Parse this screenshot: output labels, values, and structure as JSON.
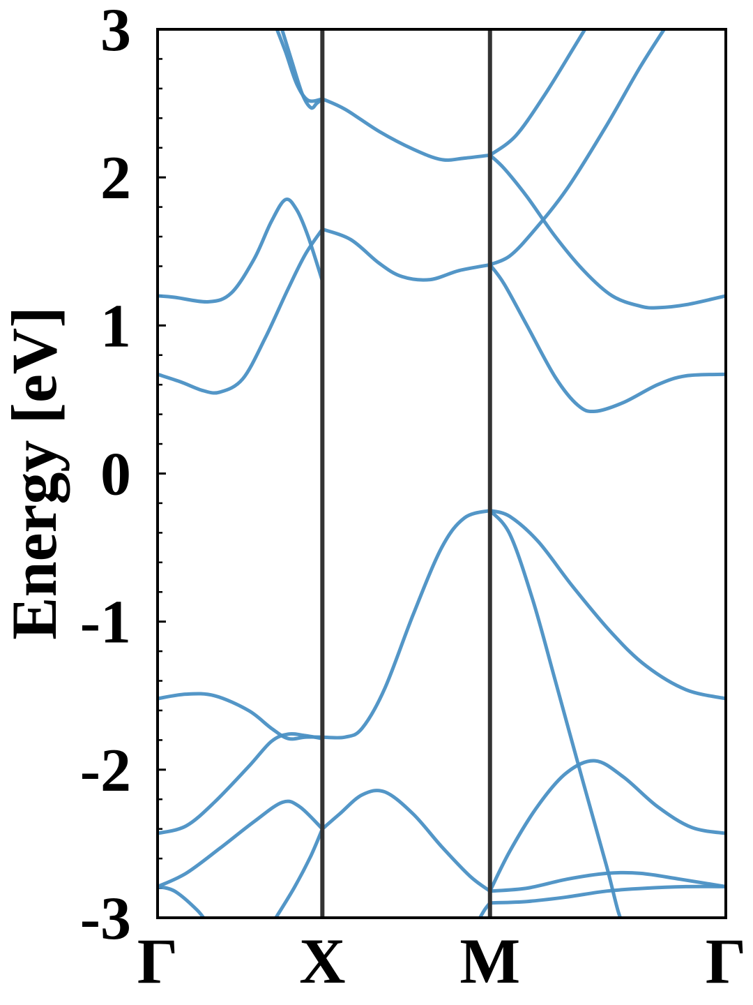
{
  "chart_data": {
    "type": "line",
    "title": "",
    "xlabel": "",
    "ylabel": "Energy [eV]",
    "ylim": [
      -3,
      3
    ],
    "x_points": [
      {
        "label": "Γ",
        "k": 0
      },
      {
        "label": "X",
        "k": 0.29
      },
      {
        "label": "M",
        "k": 0.585
      },
      {
        "label": "Γ",
        "k": 1.0
      }
    ],
    "yticks": [
      -3,
      -2,
      -1,
      0,
      1,
      2,
      3
    ],
    "ytick_labels": [
      "-3",
      "-2",
      "-1",
      "0",
      "1",
      "2",
      "3"
    ],
    "y_minor_step": 0.2,
    "grid": false,
    "colors": {
      "band": "#4a90c4",
      "symmetry_line": "#333333",
      "axes": "#000000"
    },
    "series": [
      {
        "values": [
          [
            0,
            1.2
          ],
          [
            0.03,
            1.19
          ],
          [
            0.09,
            1.16
          ],
          [
            0.13,
            1.22
          ],
          [
            0.17,
            1.45
          ],
          [
            0.2,
            1.7
          ],
          [
            0.225,
            1.85
          ],
          [
            0.245,
            1.78
          ],
          [
            0.265,
            1.6
          ],
          [
            0.29,
            1.3
          ]
        ]
      },
      {
        "values": [
          [
            0,
            0.67
          ],
          [
            0.04,
            0.62
          ],
          [
            0.08,
            0.56
          ],
          [
            0.11,
            0.55
          ],
          [
            0.15,
            0.64
          ],
          [
            0.19,
            0.92
          ],
          [
            0.23,
            1.25
          ],
          [
            0.26,
            1.48
          ],
          [
            0.29,
            1.65
          ]
        ]
      },
      {
        "values": [
          [
            0.29,
            1.65
          ],
          [
            0.34,
            1.58
          ],
          [
            0.39,
            1.42
          ],
          [
            0.43,
            1.33
          ],
          [
            0.48,
            1.31
          ],
          [
            0.53,
            1.37
          ],
          [
            0.585,
            1.41
          ]
        ]
      },
      {
        "values": [
          [
            0.585,
            1.41
          ],
          [
            0.62,
            1.47
          ],
          [
            0.66,
            1.63
          ],
          [
            0.72,
            1.92
          ],
          [
            0.79,
            2.35
          ],
          [
            0.85,
            2.75
          ],
          [
            0.9,
            3.05
          ]
        ]
      },
      {
        "values": [
          [
            0.585,
            1.41
          ],
          [
            0.61,
            1.28
          ],
          [
            0.65,
            1.0
          ],
          [
            0.7,
            0.65
          ],
          [
            0.74,
            0.46
          ],
          [
            0.77,
            0.42
          ],
          [
            0.82,
            0.48
          ],
          [
            0.88,
            0.6
          ],
          [
            0.93,
            0.66
          ],
          [
            1.0,
            0.67
          ]
        ]
      },
      {
        "values": [
          [
            0.585,
            2.15
          ],
          [
            0.61,
            2.06
          ],
          [
            0.65,
            1.87
          ],
          [
            0.7,
            1.6
          ],
          [
            0.75,
            1.37
          ],
          [
            0.8,
            1.2
          ],
          [
            0.85,
            1.13
          ],
          [
            0.88,
            1.12
          ],
          [
            0.93,
            1.14
          ],
          [
            1.0,
            1.2
          ]
        ]
      },
      {
        "values": [
          [
            0.585,
            2.15
          ],
          [
            0.63,
            2.28
          ],
          [
            0.68,
            2.55
          ],
          [
            0.73,
            2.86
          ],
          [
            0.76,
            3.05
          ]
        ]
      },
      {
        "values": [
          [
            0.29,
            2.53
          ],
          [
            0.33,
            2.46
          ],
          [
            0.39,
            2.31
          ],
          [
            0.45,
            2.19
          ],
          [
            0.5,
            2.12
          ],
          [
            0.54,
            2.13
          ],
          [
            0.585,
            2.15
          ]
        ]
      },
      {
        "values": [
          [
            0.205,
            3.05
          ],
          [
            0.225,
            2.85
          ],
          [
            0.245,
            2.63
          ],
          [
            0.265,
            2.52
          ],
          [
            0.29,
            2.53
          ]
        ]
      },
      {
        "values": [
          [
            0.215,
            3.05
          ],
          [
            0.235,
            2.8
          ],
          [
            0.255,
            2.56
          ],
          [
            0.27,
            2.47
          ],
          [
            0.28,
            2.5
          ],
          [
            0.29,
            2.53
          ]
        ]
      },
      {
        "values": [
          [
            0,
            -1.52
          ],
          [
            0.05,
            -1.49
          ],
          [
            0.1,
            -1.5
          ],
          [
            0.16,
            -1.6
          ],
          [
            0.2,
            -1.72
          ],
          [
            0.23,
            -1.79
          ],
          [
            0.26,
            -1.78
          ],
          [
            0.29,
            -1.78
          ]
        ]
      },
      {
        "values": [
          [
            0.29,
            -1.78
          ],
          [
            0.33,
            -1.78
          ],
          [
            0.36,
            -1.72
          ],
          [
            0.4,
            -1.45
          ],
          [
            0.45,
            -0.95
          ],
          [
            0.5,
            -0.5
          ],
          [
            0.54,
            -0.3
          ],
          [
            0.585,
            -0.25
          ]
        ]
      },
      {
        "values": [
          [
            0.585,
            -0.25
          ],
          [
            0.62,
            -0.29
          ],
          [
            0.67,
            -0.46
          ],
          [
            0.73,
            -0.76
          ],
          [
            0.8,
            -1.08
          ],
          [
            0.86,
            -1.3
          ],
          [
            0.93,
            -1.46
          ],
          [
            1.0,
            -1.52
          ]
        ]
      },
      {
        "values": [
          [
            0.585,
            -0.25
          ],
          [
            0.62,
            -0.41
          ],
          [
            0.66,
            -0.85
          ],
          [
            0.7,
            -1.4
          ],
          [
            0.75,
            -2.1
          ],
          [
            0.79,
            -2.65
          ],
          [
            0.81,
            -2.95
          ],
          [
            0.82,
            -3.05
          ]
        ]
      },
      {
        "values": [
          [
            0,
            -2.43
          ],
          [
            0.05,
            -2.38
          ],
          [
            0.1,
            -2.22
          ],
          [
            0.16,
            -1.98
          ],
          [
            0.2,
            -1.81
          ],
          [
            0.23,
            -1.76
          ],
          [
            0.26,
            -1.77
          ],
          [
            0.29,
            -1.79
          ]
        ]
      },
      {
        "values": [
          [
            0,
            -2.79
          ],
          [
            0.05,
            -2.7
          ],
          [
            0.11,
            -2.53
          ],
          [
            0.17,
            -2.35
          ],
          [
            0.22,
            -2.22
          ],
          [
            0.25,
            -2.25
          ],
          [
            0.29,
            -2.4
          ]
        ]
      },
      {
        "values": [
          [
            0.29,
            -2.4
          ],
          [
            0.32,
            -2.3
          ],
          [
            0.36,
            -2.17
          ],
          [
            0.4,
            -2.15
          ],
          [
            0.45,
            -2.3
          ],
          [
            0.5,
            -2.52
          ],
          [
            0.55,
            -2.72
          ],
          [
            0.585,
            -2.82
          ]
        ]
      },
      {
        "values": [
          [
            0.2,
            -3.05
          ],
          [
            0.24,
            -2.8
          ],
          [
            0.27,
            -2.58
          ],
          [
            0.29,
            -2.4
          ]
        ]
      },
      {
        "values": [
          [
            0.585,
            -2.82
          ],
          [
            0.62,
            -2.55
          ],
          [
            0.67,
            -2.24
          ],
          [
            0.72,
            -2.02
          ],
          [
            0.77,
            -1.94
          ],
          [
            0.82,
            -2.05
          ],
          [
            0.88,
            -2.25
          ],
          [
            0.94,
            -2.39
          ],
          [
            1.0,
            -2.43
          ]
        ]
      },
      {
        "values": [
          [
            0.585,
            -2.82
          ],
          [
            0.65,
            -2.8
          ],
          [
            0.72,
            -2.74
          ],
          [
            0.79,
            -2.7
          ],
          [
            0.85,
            -2.7
          ],
          [
            0.92,
            -2.74
          ],
          [
            1.0,
            -2.79
          ]
        ]
      },
      {
        "values": [
          [
            0.585,
            -2.9
          ],
          [
            0.65,
            -2.89
          ],
          [
            0.72,
            -2.86
          ],
          [
            0.79,
            -2.82
          ],
          [
            0.86,
            -2.8
          ],
          [
            0.93,
            -2.79
          ],
          [
            1.0,
            -2.79
          ]
        ]
      },
      {
        "values": [
          [
            0,
            -2.79
          ],
          [
            0.03,
            -2.82
          ],
          [
            0.07,
            -2.95
          ],
          [
            0.09,
            -3.05
          ]
        ]
      },
      {
        "values": [
          [
            0.56,
            -3.05
          ],
          [
            0.575,
            -2.95
          ],
          [
            0.585,
            -2.9
          ]
        ]
      }
    ]
  }
}
